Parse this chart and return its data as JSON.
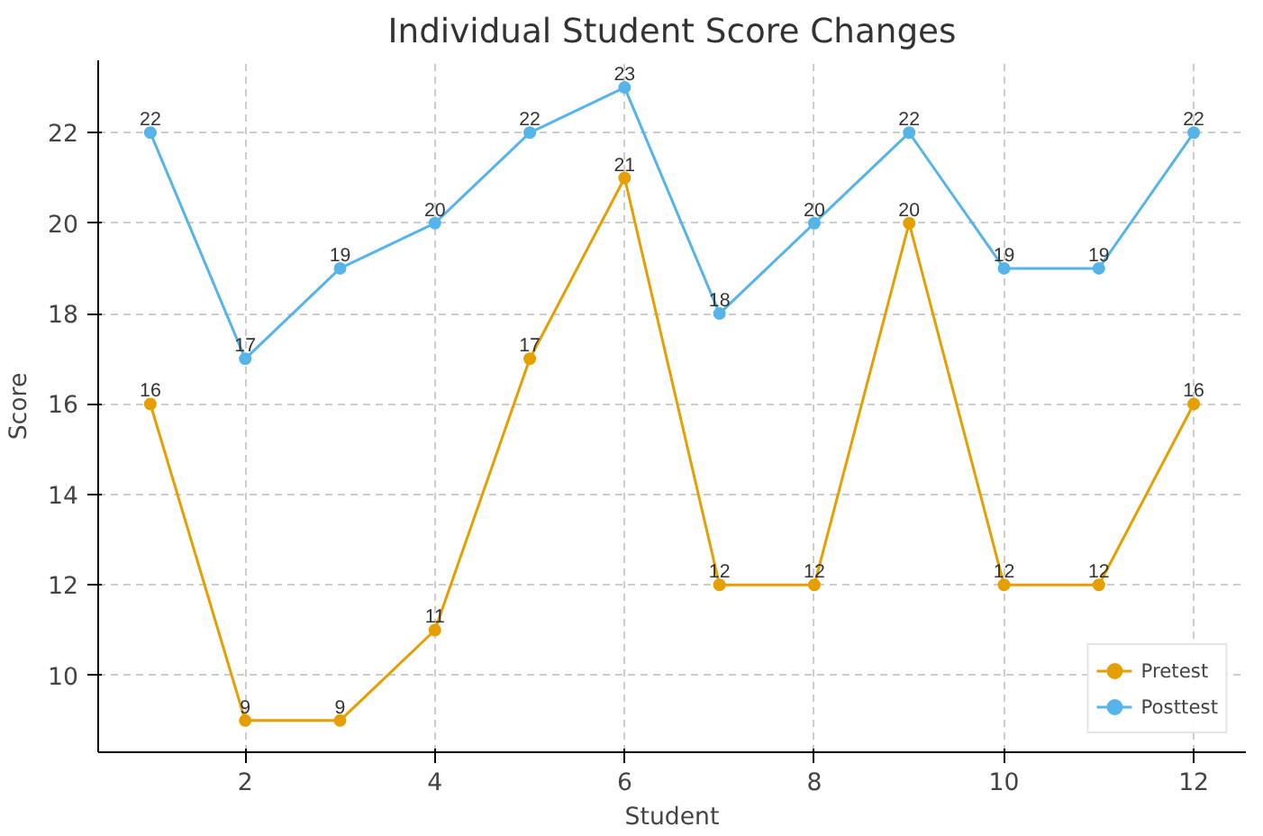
{
  "chart_data": {
    "type": "line",
    "title": "Individual Student Score Changes",
    "xlabel": "Student",
    "ylabel": "Score",
    "x": [
      1,
      2,
      3,
      4,
      5,
      6,
      7,
      8,
      9,
      10,
      11,
      12
    ],
    "series": [
      {
        "name": "Pretest",
        "color": "#e69f00",
        "values": [
          16,
          9,
          9,
          11,
          17,
          21,
          12,
          12,
          20,
          12,
          12,
          16
        ]
      },
      {
        "name": "Posttest",
        "color": "#56b4e9",
        "values": [
          22,
          17,
          19,
          20,
          22,
          23,
          18,
          20,
          22,
          19,
          19,
          22
        ]
      }
    ],
    "xlim": [
      0.45,
      12.55
    ],
    "ylim": [
      8.3,
      23.6
    ],
    "xticks": [
      2,
      4,
      6,
      8,
      10,
      12
    ],
    "yticks": [
      10,
      12,
      14,
      16,
      18,
      20,
      22
    ],
    "grid": true,
    "legend": "bottom right",
    "marker": "circle",
    "line_style": "solid",
    "data_labels": true
  }
}
